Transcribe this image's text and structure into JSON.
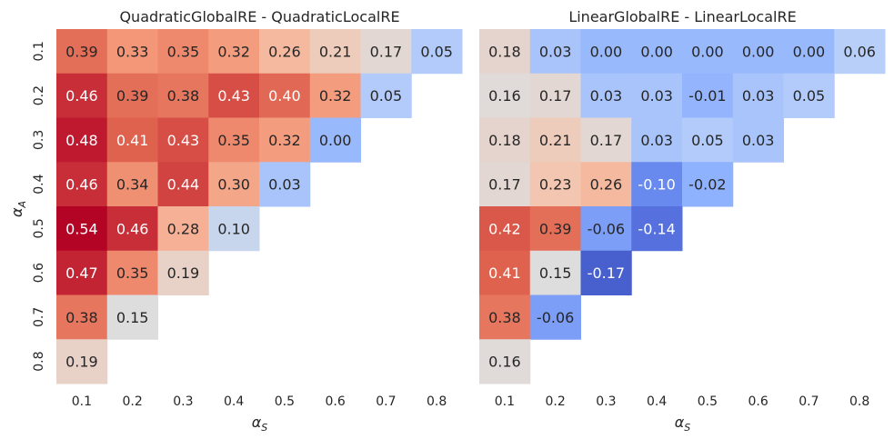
{
  "chart_data": [
    {
      "type": "heatmap",
      "title": "QuadraticGlobalRE - QuadraticLocalRE",
      "xlabel": "α_S",
      "ylabel": "α_A",
      "x_categories": [
        "0.1",
        "0.2",
        "0.3",
        "0.4",
        "0.5",
        "0.6",
        "0.7",
        "0.8"
      ],
      "y_categories": [
        "0.1",
        "0.2",
        "0.3",
        "0.4",
        "0.5",
        "0.6",
        "0.7",
        "0.8"
      ],
      "values": [
        [
          0.39,
          0.33,
          0.35,
          0.32,
          0.26,
          0.21,
          0.17,
          0.05
        ],
        [
          0.46,
          0.39,
          0.38,
          0.43,
          0.4,
          0.32,
          0.05,
          null
        ],
        [
          0.48,
          0.41,
          0.43,
          0.35,
          0.32,
          0.0,
          null,
          null
        ],
        [
          0.46,
          0.34,
          0.44,
          0.3,
          0.03,
          null,
          null,
          null
        ],
        [
          0.54,
          0.46,
          0.28,
          0.1,
          null,
          null,
          null,
          null
        ],
        [
          0.47,
          0.35,
          0.19,
          null,
          null,
          null,
          null,
          null
        ],
        [
          0.38,
          0.15,
          null,
          null,
          null,
          null,
          null,
          null
        ],
        [
          0.19,
          null,
          null,
          null,
          null,
          null,
          null,
          null
        ]
      ],
      "colormap": "coolwarm",
      "color_range": [
        -0.2,
        0.5
      ],
      "annotation_format": "2 decimals",
      "colorbar": false
    },
    {
      "type": "heatmap",
      "title": "LinearGlobalRE - LinearLocalRE",
      "xlabel": "α_S",
      "ylabel": "",
      "x_categories": [
        "0.1",
        "0.2",
        "0.3",
        "0.4",
        "0.5",
        "0.6",
        "0.7",
        "0.8"
      ],
      "y_categories": [
        "0.1",
        "0.2",
        "0.3",
        "0.4",
        "0.5",
        "0.6",
        "0.7",
        "0.8"
      ],
      "y_ticks_shown": false,
      "values": [
        [
          0.18,
          0.03,
          0.0,
          0.0,
          0.0,
          0.0,
          0.0,
          0.06
        ],
        [
          0.16,
          0.17,
          0.03,
          0.03,
          -0.01,
          0.03,
          0.05,
          null
        ],
        [
          0.18,
          0.21,
          0.17,
          0.03,
          0.05,
          0.03,
          null,
          null
        ],
        [
          0.17,
          0.23,
          0.26,
          -0.1,
          -0.02,
          null,
          null,
          null
        ],
        [
          0.42,
          0.39,
          -0.06,
          -0.14,
          null,
          null,
          null,
          null
        ],
        [
          0.41,
          0.15,
          -0.17,
          null,
          null,
          null,
          null,
          null
        ],
        [
          0.38,
          -0.06,
          null,
          null,
          null,
          null,
          null,
          null
        ],
        [
          0.16,
          null,
          null,
          null,
          null,
          null,
          null,
          null
        ]
      ],
      "colormap": "coolwarm",
      "color_range": [
        -0.2,
        0.5
      ],
      "annotation_format": "2 decimals",
      "colorbar": false
    }
  ]
}
